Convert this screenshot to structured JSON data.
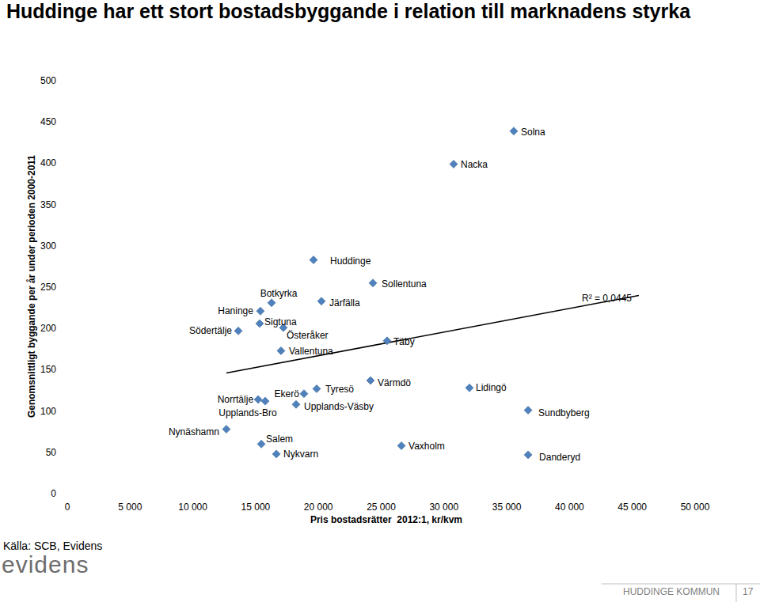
{
  "chart_data": {
    "type": "scatter",
    "title": "Huddinge har ett stort bostadsbyggande i relation till marknadens styrka",
    "x_label": "Pris bostadsrätter  2012:1, kr/kvm",
    "y_label": "Genomsnittligt byggande per år under perioden 2000-2011",
    "labels": [
      "Solna",
      "Nacka",
      "Huddinge",
      "Sollentuna",
      "Järfälla",
      "Botkyrka",
      "Haninge",
      "Sigtuna",
      "Södertälje",
      "Österåker",
      "Täby",
      "Vallentuna",
      "Värmdö",
      "Tyresö",
      "Ekerö",
      "Norrtälje",
      "Upplands-Bro",
      "Upplands-Väsby",
      "Lidingö",
      "Sundbyberg",
      "Nynäshamn",
      "Salem",
      "Nykvarn",
      "Vaxholm",
      "Danderyd"
    ],
    "x": [
      35560,
      30770,
      19610,
      24340,
      20240,
      16270,
      15380,
      15320,
      13620,
      17210,
      25470,
      17020,
      24150,
      19860,
      18850,
      15200,
      15760,
      18220,
      32030,
      36700,
      12670,
      15450,
      16650,
      26610,
      36700
    ],
    "values": [
      439,
      399,
      283,
      255,
      233,
      231,
      221,
      206,
      197,
      201,
      185,
      173,
      137,
      127,
      121,
      114,
      112,
      108,
      128,
      101,
      78,
      60,
      48,
      58,
      47
    ],
    "color": "#4f81bd",
    "marker": "diamond",
    "trendline": {
      "x": [
        12670,
        45520
      ],
      "values": [
        146,
        240
      ]
    },
    "annotations": [
      "R² = 0,0445"
    ],
    "source": "Källa: SCB, Evidens",
    "logo": "evidens",
    "footer": "HUDDINGE KOMMUN",
    "page_number": "17",
    "xlim": [
      0,
      50000
    ],
    "ylim": [
      0,
      500
    ],
    "xticks": [
      0,
      {
        "value": 5000,
        "label": "5 000"
      },
      {
        "value": 10000,
        "label": "10 000"
      },
      {
        "value": 15000,
        "label": "15 000"
      },
      {
        "value": 20000,
        "label": "20 000"
      },
      {
        "value": 25000,
        "label": "25 000"
      },
      {
        "value": 30000,
        "label": "30 000"
      },
      {
        "value": 35000,
        "label": "35 000"
      },
      {
        "value": 40000,
        "label": "40 000"
      },
      {
        "value": 45000,
        "label": "45 000"
      },
      {
        "value": 50000,
        "label": "50 000"
      }
    ],
    "yticks": [
      0,
      50,
      100,
      150,
      200,
      250,
      300,
      350,
      400,
      450,
      500
    ],
    "grid": false
  }
}
